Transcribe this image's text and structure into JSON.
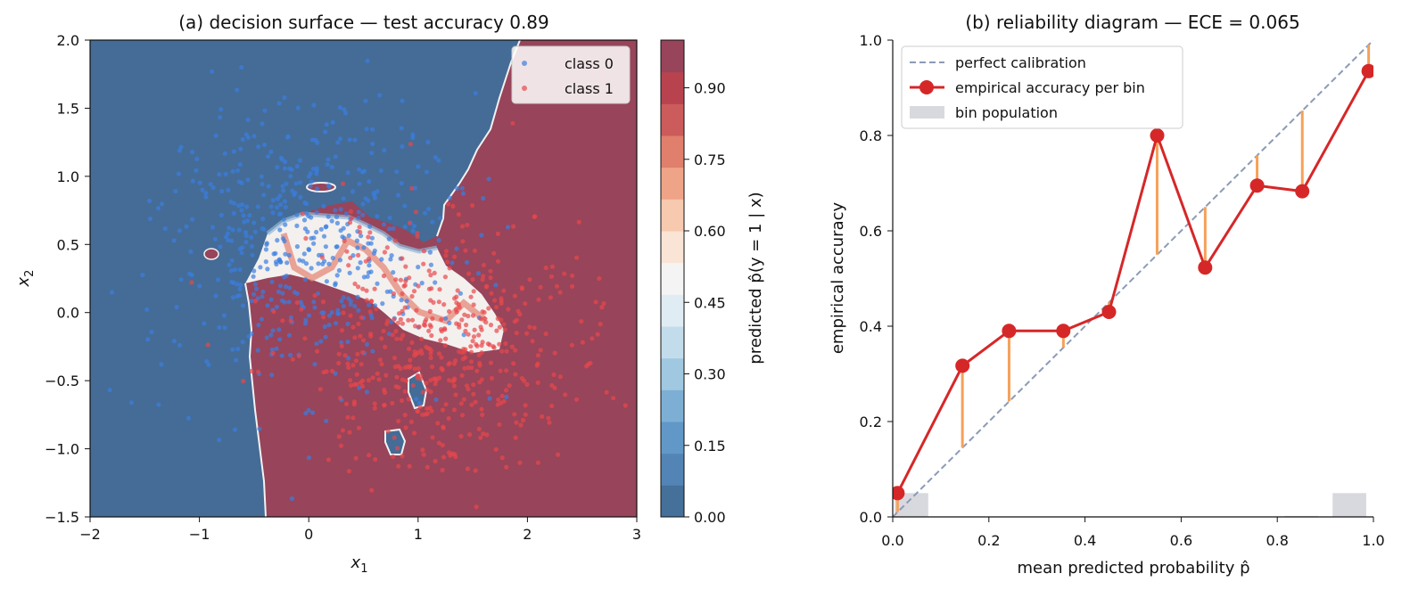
{
  "chart_data": [
    {
      "type": "scatter",
      "title": "(a) decision surface — test accuracy 0.89",
      "xlabel": "x",
      "xlabel_sub": "1",
      "ylabel": "x",
      "ylabel_sub": "2",
      "xlim": [
        -2,
        3
      ],
      "ylim": [
        -1.5,
        2.0
      ],
      "xticks": [
        "−2",
        "−1",
        "0",
        "1",
        "2",
        "3"
      ],
      "yticks": [
        "−1.5",
        "−1.0",
        "−0.5",
        "0.0",
        "0.5",
        "1.0",
        "1.5",
        "2.0"
      ],
      "legend": {
        "position": "top-right",
        "entries": [
          "class 0",
          "class 1"
        ]
      },
      "colors": {
        "class0_region": "#446c96",
        "class1_region": "#98445a",
        "class0_point": "#3b7de0",
        "class1_point": "#e8474a"
      },
      "series": [
        {
          "name": "class 0",
          "cluster": {
            "center": [
              0.0,
              0.5
            ],
            "spread": [
              0.7,
              0.55
            ],
            "count": 520
          }
        },
        {
          "name": "class 1",
          "cluster": {
            "center": [
              1.2,
              -0.25
            ],
            "spread": [
              0.65,
              0.45
            ],
            "count": 520
          }
        }
      ],
      "colorbar": {
        "label": "predicted p̂(y = 1 | x)",
        "range": [
          0,
          1
        ],
        "ticks": [
          "0.00",
          "0.15",
          "0.30",
          "0.45",
          "0.60",
          "0.75",
          "0.90"
        ],
        "tick_values": [
          0.0,
          0.15,
          0.3,
          0.45,
          0.6,
          0.75,
          0.9
        ],
        "colors": [
          "#44709a",
          "#5384b6",
          "#6198c8",
          "#7dafd4",
          "#a0c8e1",
          "#c3dceb",
          "#e0ecf3",
          "#f4f4f4",
          "#fae4d6",
          "#f7c9ae",
          "#f0a487",
          "#e07f6c",
          "#cc5b5c",
          "#b8434f",
          "#98445a"
        ]
      }
    },
    {
      "type": "line",
      "title": "(b) reliability diagram — ECE = 0.065",
      "xlabel": "mean predicted probability p̂",
      "ylabel": "empirical accuracy",
      "xlim": [
        0,
        1
      ],
      "ylim": [
        0,
        1
      ],
      "xticks": [
        "0.0",
        "0.2",
        "0.4",
        "0.6",
        "0.8",
        "1.0"
      ],
      "yticks": [
        "0.0",
        "0.2",
        "0.4",
        "0.6",
        "0.8",
        "1.0"
      ],
      "legend": {
        "position": "top-left",
        "entries": [
          "perfect calibration",
          "empirical accuracy per bin",
          "bin population"
        ]
      },
      "series": [
        {
          "name": "empirical accuracy per bin",
          "x": [
            0.01,
            0.145,
            0.242,
            0.355,
            0.45,
            0.55,
            0.65,
            0.758,
            0.852,
            0.99
          ],
          "y": [
            0.05,
            0.317,
            0.39,
            0.39,
            0.43,
            0.8,
            0.523,
            0.695,
            0.683,
            0.935
          ]
        }
      ],
      "bin_population": [
        0.05,
        0.0,
        0.0,
        0.0,
        0.0,
        0.0,
        0.0,
        0.0,
        0.002,
        0.05
      ],
      "colors": {
        "line": "#d62728",
        "diagonal": "#8c9bb5",
        "gap": "#f5a15a",
        "bins": "#d8d9de"
      }
    }
  ]
}
